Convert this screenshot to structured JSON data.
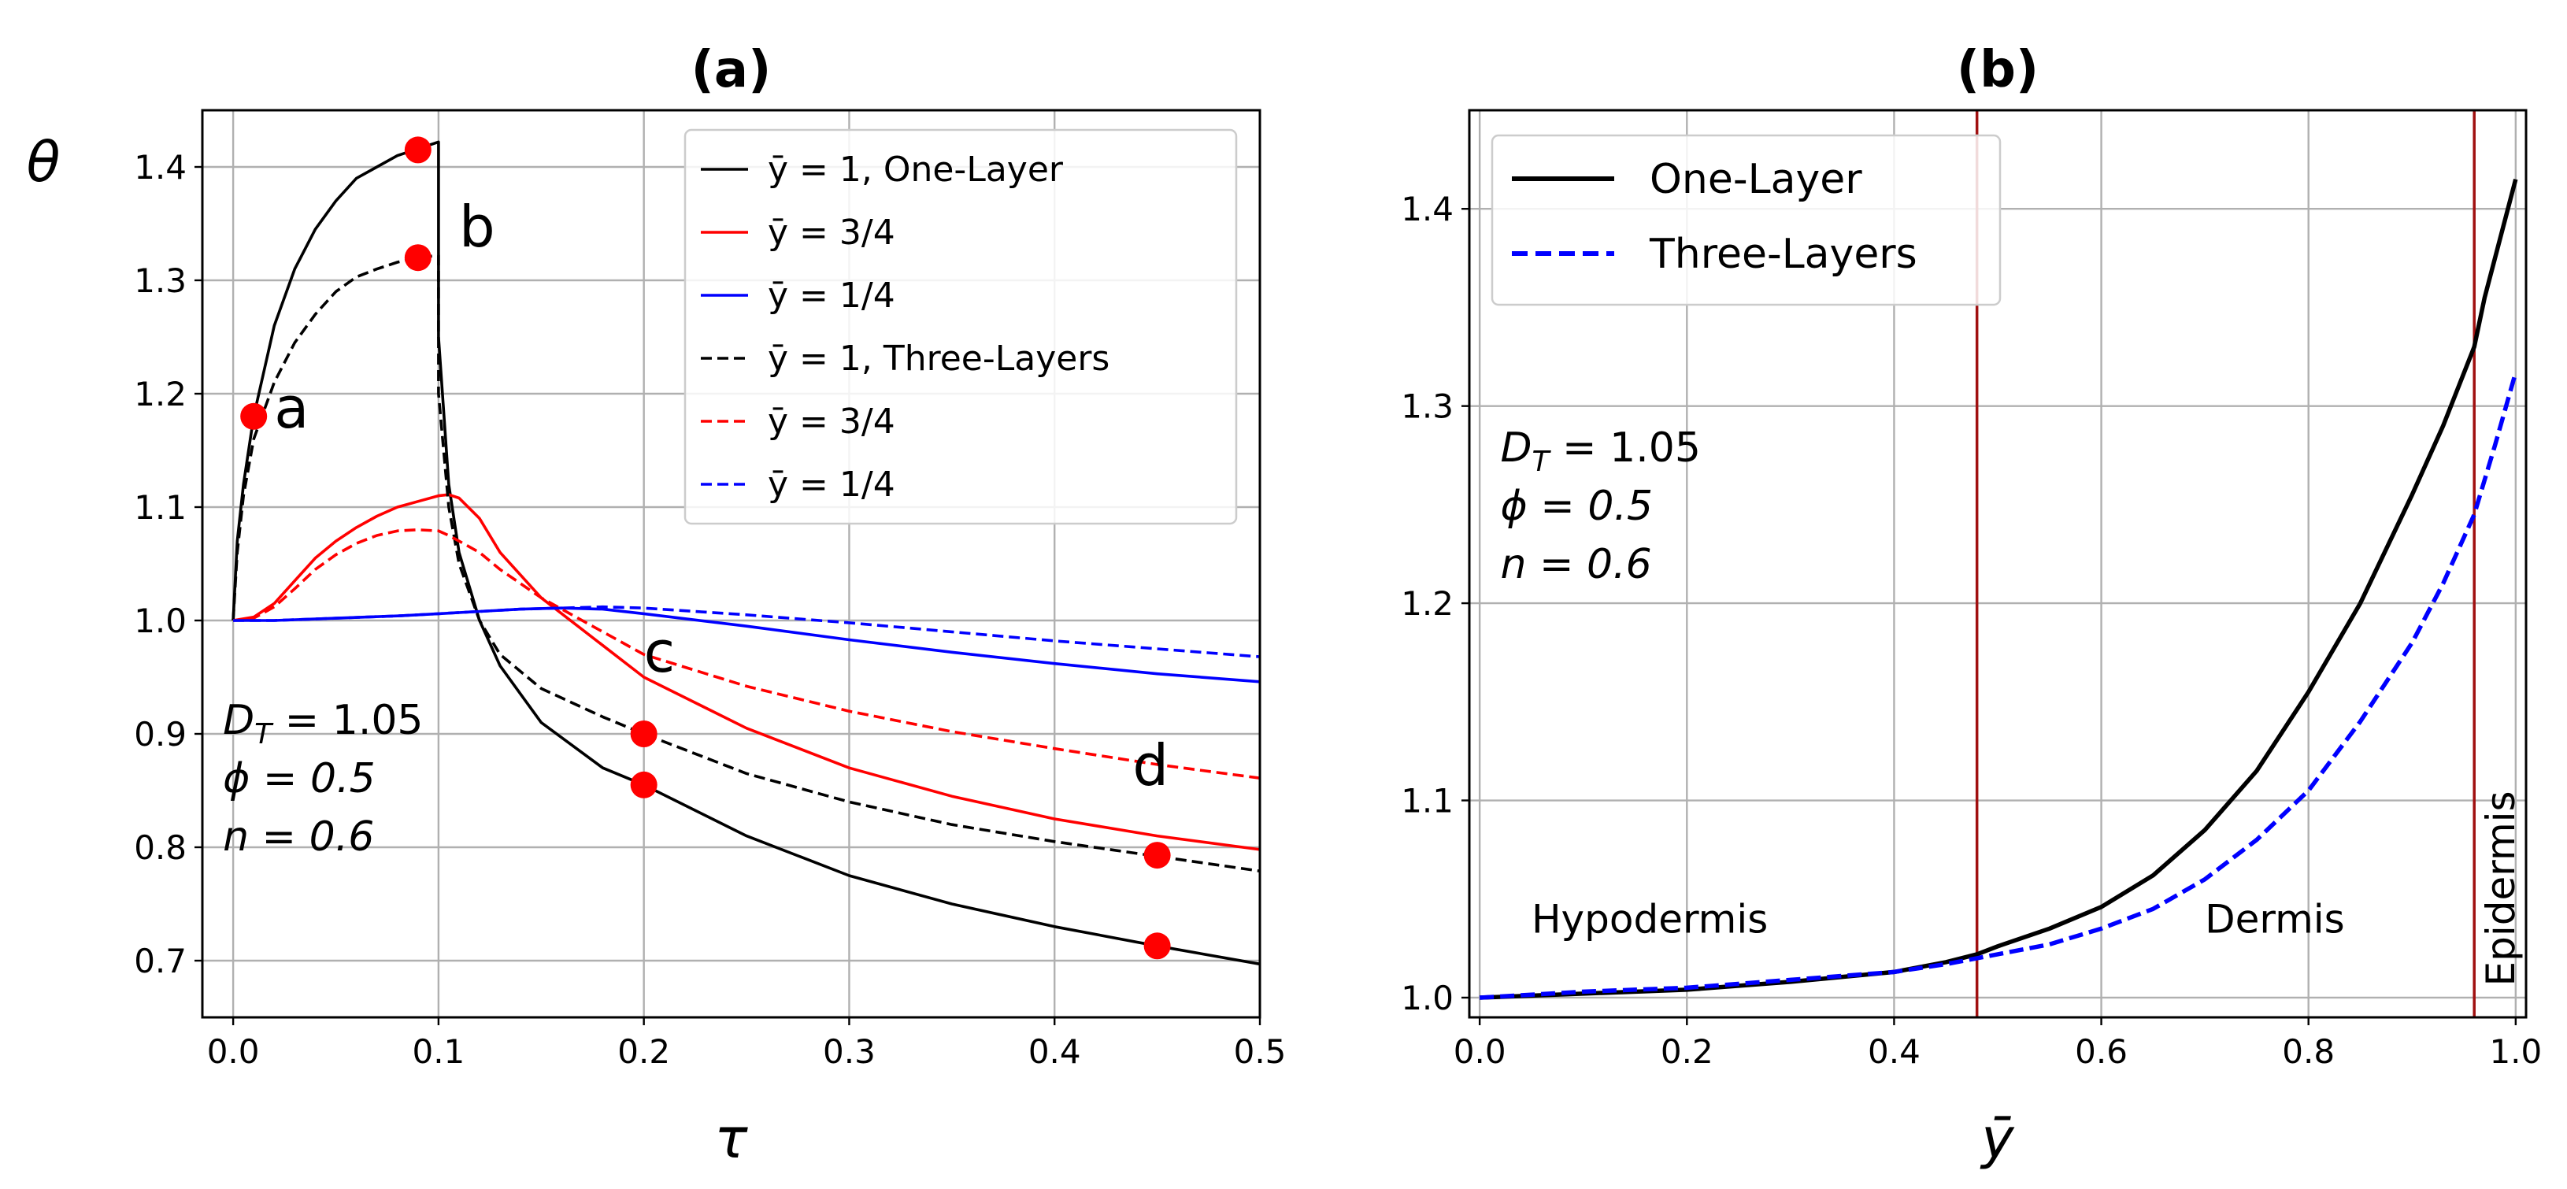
{
  "chart_data": [
    {
      "panel_label": "(a)",
      "type": "line",
      "xlabel": "τ",
      "ylabel": "θ",
      "xlim": [
        -0.015,
        0.5
      ],
      "ylim": [
        0.65,
        1.45
      ],
      "xticks": [
        0.0,
        0.1,
        0.2,
        0.3,
        0.4,
        0.5
      ],
      "yticks": [
        0.7,
        0.8,
        0.9,
        1.0,
        1.1,
        1.2,
        1.3,
        1.4
      ],
      "xtick_labels": [
        "0.0",
        "0.1",
        "0.2",
        "0.3",
        "0.4",
        "0.5"
      ],
      "ytick_labels": [
        "0.7",
        "0.8",
        "0.9",
        "1.0",
        "1.1",
        "1.2",
        "1.3",
        "1.4"
      ],
      "grid": true,
      "legend_location": "top-right",
      "series": [
        {
          "name": "ȳ = 1, One-Layer",
          "color": "#000000",
          "style": "solid",
          "x": [
            0,
            0.002,
            0.005,
            0.01,
            0.02,
            0.03,
            0.04,
            0.05,
            0.06,
            0.07,
            0.08,
            0.09,
            0.1,
            0.1,
            0.105,
            0.11,
            0.12,
            0.13,
            0.15,
            0.18,
            0.2,
            0.25,
            0.3,
            0.35,
            0.4,
            0.45,
            0.5
          ],
          "y": [
            1.0,
            1.07,
            1.12,
            1.18,
            1.26,
            1.31,
            1.345,
            1.37,
            1.39,
            1.4,
            1.41,
            1.416,
            1.422,
            1.25,
            1.12,
            1.06,
            1.0,
            0.96,
            0.91,
            0.87,
            0.855,
            0.81,
            0.775,
            0.75,
            0.73,
            0.713,
            0.697
          ]
        },
        {
          "name": "ȳ = 3/4",
          "color": "#ff0000",
          "style": "solid",
          "x": [
            0,
            0.01,
            0.02,
            0.03,
            0.04,
            0.05,
            0.06,
            0.07,
            0.08,
            0.09,
            0.1,
            0.105,
            0.11,
            0.12,
            0.13,
            0.15,
            0.2,
            0.25,
            0.3,
            0.35,
            0.4,
            0.45,
            0.5
          ],
          "y": [
            1.0,
            1.003,
            1.015,
            1.035,
            1.055,
            1.07,
            1.082,
            1.092,
            1.1,
            1.105,
            1.11,
            1.111,
            1.108,
            1.09,
            1.06,
            1.02,
            0.95,
            0.905,
            0.87,
            0.845,
            0.825,
            0.81,
            0.798
          ]
        },
        {
          "name": "ȳ = 1/4",
          "color": "#0000ff",
          "style": "solid",
          "x": [
            0,
            0.02,
            0.05,
            0.08,
            0.1,
            0.12,
            0.14,
            0.16,
            0.18,
            0.2,
            0.25,
            0.3,
            0.35,
            0.4,
            0.45,
            0.5
          ],
          "y": [
            1.0,
            1.0,
            1.002,
            1.004,
            1.006,
            1.008,
            1.01,
            1.011,
            1.01,
            1.006,
            0.995,
            0.983,
            0.972,
            0.962,
            0.953,
            0.946
          ]
        },
        {
          "name": "ȳ = 1, Three-Layers",
          "color": "#000000",
          "style": "dashed",
          "x": [
            0,
            0.002,
            0.005,
            0.01,
            0.02,
            0.03,
            0.04,
            0.05,
            0.06,
            0.07,
            0.08,
            0.09,
            0.1,
            0.1,
            0.105,
            0.11,
            0.12,
            0.13,
            0.15,
            0.18,
            0.2,
            0.25,
            0.3,
            0.35,
            0.4,
            0.45,
            0.5
          ],
          "y": [
            1.0,
            1.06,
            1.11,
            1.16,
            1.21,
            1.245,
            1.27,
            1.29,
            1.303,
            1.31,
            1.316,
            1.32,
            1.322,
            1.2,
            1.1,
            1.05,
            1.0,
            0.97,
            0.94,
            0.915,
            0.9,
            0.865,
            0.84,
            0.82,
            0.805,
            0.792,
            0.779
          ]
        },
        {
          "name": "ȳ = 3/4",
          "color": "#ff0000",
          "style": "dashed",
          "x": [
            0,
            0.01,
            0.02,
            0.03,
            0.04,
            0.05,
            0.06,
            0.07,
            0.08,
            0.09,
            0.1,
            0.105,
            0.11,
            0.12,
            0.13,
            0.15,
            0.2,
            0.25,
            0.3,
            0.35,
            0.4,
            0.45,
            0.5
          ],
          "y": [
            1.0,
            1.002,
            1.012,
            1.028,
            1.045,
            1.058,
            1.068,
            1.075,
            1.079,
            1.08,
            1.079,
            1.075,
            1.07,
            1.06,
            1.045,
            1.02,
            0.97,
            0.942,
            0.92,
            0.902,
            0.887,
            0.873,
            0.861
          ]
        },
        {
          "name": "ȳ = 1/4",
          "color": "#0000ff",
          "style": "dashed",
          "x": [
            0,
            0.02,
            0.05,
            0.08,
            0.1,
            0.12,
            0.14,
            0.16,
            0.18,
            0.2,
            0.25,
            0.3,
            0.35,
            0.4,
            0.45,
            0.5
          ],
          "y": [
            1.0,
            1.0,
            1.002,
            1.004,
            1.006,
            1.008,
            1.01,
            1.011,
            1.012,
            1.011,
            1.005,
            0.998,
            0.99,
            0.982,
            0.975,
            0.968
          ]
        }
      ],
      "markers": [
        {
          "label": "a",
          "x": 0.01,
          "y": 1.18
        },
        {
          "label": "b",
          "x": 0.09,
          "y": 1.415
        },
        {
          "label": "",
          "x": 0.09,
          "y": 1.32
        },
        {
          "label": "c",
          "x": 0.2,
          "y": 0.9
        },
        {
          "label": "",
          "x": 0.2,
          "y": 0.855
        },
        {
          "label": "d",
          "x": 0.45,
          "y": 0.793
        },
        {
          "label": "",
          "x": 0.45,
          "y": 0.713
        }
      ],
      "point_labels": [
        {
          "text": "a",
          "x": 0.02,
          "y": 1.17
        },
        {
          "text": "b",
          "x": 0.11,
          "y": 1.33
        },
        {
          "text": "c",
          "x": 0.2,
          "y": 0.955
        },
        {
          "text": "d",
          "x": 0.438,
          "y": 0.855
        }
      ],
      "params": {
        "x": -0.005,
        "y": 0.9,
        "lines": [
          "D",
          "T",
          " = 1.05",
          "ϕ = 0.5",
          "n = 0.6"
        ]
      }
    },
    {
      "panel_label": "(b)",
      "type": "line",
      "xlabel": "ȳ",
      "ylabel": "",
      "xlim": [
        -0.01,
        1.01
      ],
      "ylim": [
        0.99,
        1.45
      ],
      "xticks": [
        0.0,
        0.2,
        0.4,
        0.6,
        0.8,
        1.0
      ],
      "yticks": [
        1.0,
        1.1,
        1.2,
        1.3,
        1.4
      ],
      "xtick_labels": [
        "0.0",
        "0.2",
        "0.4",
        "0.6",
        "0.8",
        "1.0"
      ],
      "ytick_labels": [
        "1.0",
        "1.1",
        "1.2",
        "1.3",
        "1.4"
      ],
      "grid": true,
      "legend_location": "top-left",
      "series": [
        {
          "name": "One-Layer",
          "color": "#000000",
          "style": "solid",
          "x": [
            0,
            0.1,
            0.2,
            0.3,
            0.4,
            0.45,
            0.48,
            0.5,
            0.55,
            0.6,
            0.65,
            0.7,
            0.75,
            0.8,
            0.85,
            0.9,
            0.93,
            0.96,
            0.97,
            1.0
          ],
          "y": [
            1.0,
            1.002,
            1.004,
            1.008,
            1.013,
            1.018,
            1.022,
            1.026,
            1.035,
            1.046,
            1.062,
            1.085,
            1.115,
            1.155,
            1.2,
            1.255,
            1.29,
            1.33,
            1.355,
            1.415
          ]
        },
        {
          "name": "Three-Layers",
          "color": "#0000ff",
          "style": "dashed",
          "x": [
            0,
            0.1,
            0.2,
            0.3,
            0.4,
            0.45,
            0.48,
            0.5,
            0.55,
            0.6,
            0.65,
            0.7,
            0.75,
            0.8,
            0.85,
            0.9,
            0.93,
            0.96,
            0.98,
            1.0
          ],
          "y": [
            1.0,
            1.003,
            1.005,
            1.009,
            1.013,
            1.017,
            1.02,
            1.022,
            1.027,
            1.035,
            1.045,
            1.06,
            1.08,
            1.105,
            1.14,
            1.18,
            1.21,
            1.245,
            1.28,
            1.317
          ]
        }
      ],
      "vlines": [
        {
          "x": 0.48,
          "color": "#a01010"
        },
        {
          "x": 0.96,
          "color": "#a01010"
        }
      ],
      "regions": [
        {
          "text": "Hypodermis",
          "x": 0.05,
          "y": 1.033,
          "rotate": false
        },
        {
          "text": "Dermis",
          "x": 0.7,
          "y": 1.033,
          "rotate": false
        },
        {
          "text": "Epidermis",
          "x": 1.0,
          "y": 1.005,
          "rotate": true
        }
      ],
      "params": {
        "x": 0.02,
        "y": 1.272,
        "lines": [
          "D",
          "T",
          " = 1.05",
          "ϕ = 0.5",
          "n = 0.6"
        ]
      }
    }
  ]
}
